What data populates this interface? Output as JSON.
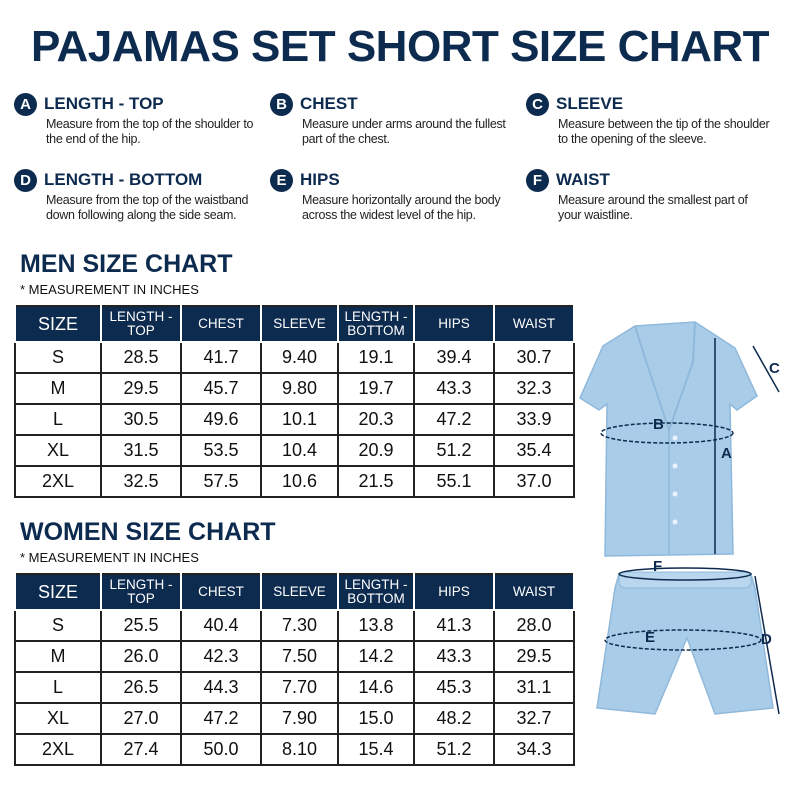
{
  "title": "PAJAMAS SET SHORT SIZE CHART",
  "legend": [
    {
      "badge": "A",
      "title": "LENGTH - TOP",
      "desc": "Measure from the top of the shoulder to the end of the hip."
    },
    {
      "badge": "B",
      "title": "CHEST",
      "desc": "Measure under arms around the fullest part of the chest."
    },
    {
      "badge": "C",
      "title": "SLEEVE",
      "desc": "Measure between the tip of the shoulder to the opening of the sleeve."
    },
    {
      "badge": "D",
      "title": "LENGTH - BOTTOM",
      "desc": "Measure from the top of the waistband down following along the side seam."
    },
    {
      "badge": "E",
      "title": "HIPS",
      "desc": "Measure horizontally around the body across the widest level of the hip."
    },
    {
      "badge": "F",
      "title": "WAIST",
      "desc": "Measure around the smallest part of your waistline."
    }
  ],
  "men": {
    "heading": "MEN SIZE CHART",
    "note": "* MEASUREMENT IN INCHES",
    "columns": [
      "SIZE",
      "LENGTH - TOP",
      "CHEST",
      "SLEEVE",
      "LENGTH - BOTTOM",
      "HIPS",
      "WAIST"
    ],
    "rows": [
      [
        "S",
        "28.5",
        "41.7",
        "9.40",
        "19.1",
        "39.4",
        "30.7"
      ],
      [
        "M",
        "29.5",
        "45.7",
        "9.80",
        "19.7",
        "43.3",
        "32.3"
      ],
      [
        "L",
        "30.5",
        "49.6",
        "10.1",
        "20.3",
        "47.2",
        "33.9"
      ],
      [
        "XL",
        "31.5",
        "53.5",
        "10.4",
        "20.9",
        "51.2",
        "35.4"
      ],
      [
        "2XL",
        "32.5",
        "57.5",
        "10.6",
        "21.5",
        "55.1",
        "37.0"
      ]
    ]
  },
  "women": {
    "heading": "WOMEN SIZE CHART",
    "note": "* MEASUREMENT IN INCHES",
    "columns": [
      "SIZE",
      "LENGTH - TOP",
      "CHEST",
      "SLEEVE",
      "LENGTH - BOTTOM",
      "HIPS",
      "WAIST"
    ],
    "rows": [
      [
        "S",
        "25.5",
        "40.4",
        "7.30",
        "13.8",
        "41.3",
        "28.0"
      ],
      [
        "M",
        "26.0",
        "42.3",
        "7.50",
        "14.2",
        "43.3",
        "29.5"
      ],
      [
        "L",
        "26.5",
        "44.3",
        "7.70",
        "14.6",
        "45.3",
        "31.1"
      ],
      [
        "XL",
        "27.0",
        "47.2",
        "7.90",
        "15.0",
        "48.2",
        "32.7"
      ],
      [
        "2XL",
        "27.4",
        "50.0",
        "8.10",
        "15.4",
        "51.2",
        "34.3"
      ]
    ]
  },
  "illustration": {
    "labels": {
      "a": "A",
      "b": "B",
      "c": "C",
      "d": "D",
      "e": "E",
      "f": "F"
    },
    "colors": {
      "garment": "#a9cde9",
      "garment_shadow": "#8fb8db",
      "measure_line": "#0d2a4f",
      "navy": "#0d2a4f"
    }
  }
}
